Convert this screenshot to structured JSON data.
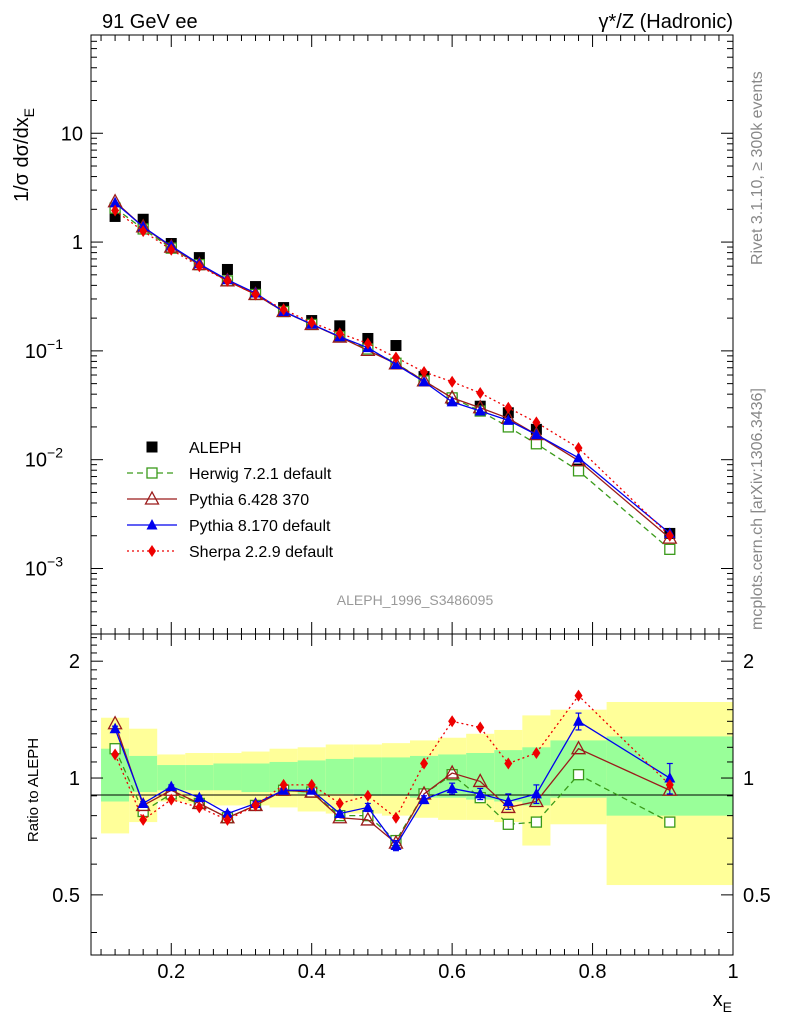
{
  "chart_data": [
    {
      "type": "scatter",
      "title_left": "91 GeV ee",
      "title_right": "γ*/Z (Hadronic)",
      "ylabel": "1/σ dσ/dx_E",
      "yscale": "log",
      "ylim": [
        0.00025,
        80
      ],
      "xlim": [
        0.0857,
        1.0
      ],
      "watermark": "ALEPH_1996_S3486095",
      "y_ticks": [
        {
          "value": 0.001,
          "label": "10",
          "exp": "−3"
        },
        {
          "value": 0.01,
          "label": "10",
          "exp": "−2"
        },
        {
          "value": 0.1,
          "label": "10",
          "exp": "−1"
        },
        {
          "value": 1,
          "label": "1",
          "exp": ""
        },
        {
          "value": 10,
          "label": "10",
          "exp": ""
        }
      ],
      "x": [
        0.12,
        0.16,
        0.2,
        0.24,
        0.28,
        0.32,
        0.36,
        0.4,
        0.44,
        0.48,
        0.52,
        0.56,
        0.6,
        0.64,
        0.68,
        0.72,
        0.78,
        0.91
      ],
      "series": [
        {
          "name": "ALEPH",
          "key": "aleph",
          "color": "#000000",
          "marker": "square",
          "values": [
            1.72,
            1.62,
            0.97,
            0.72,
            0.56,
            0.39,
            0.25,
            0.19,
            0.17,
            0.13,
            0.112,
            0.058,
            0.036,
            0.031,
            0.027,
            0.019,
            0.0082,
            0.0021
          ]
        },
        {
          "name": "Herwig 7.2.1 default",
          "key": "herwig",
          "color": "#3a9a1a",
          "marker": "open-square",
          "dash": "6,4",
          "values": [
            2.05,
            1.32,
            0.88,
            0.62,
            0.44,
            0.33,
            0.23,
            0.175,
            0.135,
            0.104,
            0.077,
            0.053,
            0.037,
            0.028,
            0.02,
            0.014,
            0.0079,
            0.0015
          ]
        },
        {
          "name": "Pythia 6.428 370",
          "key": "pythia6",
          "color": "#9b1b1b",
          "marker": "open-triangle",
          "values": [
            2.35,
            1.38,
            0.9,
            0.62,
            0.44,
            0.33,
            0.23,
            0.175,
            0.134,
            0.101,
            0.076,
            0.053,
            0.037,
            0.03,
            0.024,
            0.017,
            0.0098,
            0.0019
          ]
        },
        {
          "name": "Pythia 8.170 default",
          "key": "pythia8",
          "color": "#0000ee",
          "marker": "triangle",
          "values": [
            2.3,
            1.38,
            0.92,
            0.63,
            0.45,
            0.34,
            0.23,
            0.176,
            0.135,
            0.107,
            0.075,
            0.052,
            0.034,
            0.028,
            0.023,
            0.017,
            0.0104,
            0.0021
          ]
        },
        {
          "name": "Sherpa 2.2.9 default",
          "key": "sherpa",
          "color": "#ee0000",
          "marker": "diamond",
          "dash": "2,3",
          "values": [
            1.95,
            1.26,
            0.85,
            0.6,
            0.44,
            0.33,
            0.24,
            0.182,
            0.145,
            0.117,
            0.087,
            0.064,
            0.052,
            0.041,
            0.03,
            0.022,
            0.0128,
            0.002
          ]
        }
      ]
    },
    {
      "type": "line",
      "ylabel": "Ratio to ALEPH",
      "xlabel": "x_E",
      "ylim": [
        0.35,
        2.35
      ],
      "xlim": [
        0.0857,
        1.0
      ],
      "y_ticks": [
        0.5,
        1,
        2
      ],
      "x_ticks": [
        0.2,
        0.4,
        0.6,
        0.8,
        1
      ],
      "x_tick_labels": [
        "0.2",
        "0.4",
        "0.6",
        "0.8",
        "1"
      ],
      "y_tick_labels": [
        "0.5",
        "1",
        "2"
      ],
      "bins": [
        [
          0.1,
          0.14
        ],
        [
          0.14,
          0.18
        ],
        [
          0.18,
          0.22
        ],
        [
          0.22,
          0.26
        ],
        [
          0.26,
          0.3
        ],
        [
          0.3,
          0.34
        ],
        [
          0.34,
          0.38
        ],
        [
          0.38,
          0.42
        ],
        [
          0.42,
          0.46
        ],
        [
          0.46,
          0.5
        ],
        [
          0.5,
          0.54
        ],
        [
          0.54,
          0.58
        ],
        [
          0.58,
          0.62
        ],
        [
          0.62,
          0.66
        ],
        [
          0.66,
          0.7
        ],
        [
          0.7,
          0.74
        ],
        [
          0.74,
          0.82
        ],
        [
          0.82,
          1.0
        ]
      ],
      "band_outer": [
        [
          0.72,
          1.43
        ],
        [
          0.77,
          1.34
        ],
        [
          0.87,
          1.15
        ],
        [
          0.86,
          1.16
        ],
        [
          0.85,
          1.16
        ],
        [
          0.85,
          1.17
        ],
        [
          0.84,
          1.19
        ],
        [
          0.82,
          1.2
        ],
        [
          0.81,
          1.22
        ],
        [
          0.81,
          1.22
        ],
        [
          0.8,
          1.23
        ],
        [
          0.79,
          1.25
        ],
        [
          0.78,
          1.27
        ],
        [
          0.78,
          1.3
        ],
        [
          0.77,
          1.33
        ],
        [
          0.67,
          1.45
        ],
        [
          0.76,
          1.5
        ],
        [
          0.53,
          1.57
        ]
      ],
      "band_inner": [
        [
          0.87,
          1.19
        ],
        [
          0.92,
          1.14
        ],
        [
          0.93,
          1.08
        ],
        [
          0.93,
          1.08
        ],
        [
          0.93,
          1.09
        ],
        [
          0.92,
          1.09
        ],
        [
          0.92,
          1.1
        ],
        [
          0.91,
          1.11
        ],
        [
          0.91,
          1.12
        ],
        [
          0.9,
          1.13
        ],
        [
          0.9,
          1.13
        ],
        [
          0.89,
          1.14
        ],
        [
          0.89,
          1.15
        ],
        [
          0.88,
          1.16
        ],
        [
          0.87,
          1.18
        ],
        [
          0.85,
          1.2
        ],
        [
          0.89,
          1.25
        ],
        [
          0.8,
          1.28
        ]
      ],
      "series": [
        {
          "key": "herwig",
          "values": [
            1.19,
            0.82,
            0.91,
            0.86,
            0.79,
            0.85,
            0.93,
            0.92,
            0.8,
            0.8,
            0.69,
            0.91,
            1.02,
            0.89,
            0.76,
            0.77,
            1.02,
            0.77
          ],
          "errors": [
            0,
            0,
            0,
            0,
            0,
            0,
            0,
            0,
            0,
            0,
            0,
            0,
            0,
            0,
            0,
            0,
            0,
            0
          ]
        },
        {
          "key": "pythia6",
          "values": [
            1.38,
            0.85,
            0.93,
            0.86,
            0.79,
            0.85,
            0.93,
            0.92,
            0.79,
            0.78,
            0.68,
            0.91,
            1.03,
            0.98,
            0.84,
            0.87,
            1.19,
            0.93
          ],
          "errors": [
            0,
            0,
            0,
            0,
            0,
            0,
            0,
            0,
            0,
            0,
            0,
            0,
            0,
            0,
            0,
            0,
            0,
            0
          ]
        },
        {
          "key": "pythia8",
          "values": [
            1.34,
            0.86,
            0.95,
            0.89,
            0.81,
            0.86,
            0.93,
            0.93,
            0.81,
            0.84,
            0.67,
            0.88,
            0.94,
            0.91,
            0.87,
            0.91,
            1.4,
            1.0
          ],
          "errors": [
            0.02,
            0.01,
            0.01,
            0.01,
            0.01,
            0.01,
            0.01,
            0.01,
            0.01,
            0.02,
            0.02,
            0.02,
            0.03,
            0.03,
            0.04,
            0.05,
            0.07,
            0.09
          ]
        },
        {
          "key": "sherpa",
          "values": [
            1.15,
            0.78,
            0.88,
            0.84,
            0.78,
            0.85,
            0.96,
            0.96,
            0.86,
            0.9,
            0.79,
            1.09,
            1.4,
            1.35,
            1.09,
            1.16,
            1.63,
            0.96
          ],
          "errors": [
            0,
            0,
            0,
            0,
            0,
            0,
            0,
            0,
            0,
            0,
            0,
            0,
            0,
            0,
            0,
            0,
            0,
            0
          ]
        }
      ]
    }
  ],
  "side_labels": {
    "rivet": "Rivet 3.1.10, ≥ 300k events",
    "mcplots": "mcplots.cern.ch [arXiv:1306.3436]"
  },
  "colors": {
    "band_outer": "#ffff99",
    "band_inner": "#99ff99"
  }
}
